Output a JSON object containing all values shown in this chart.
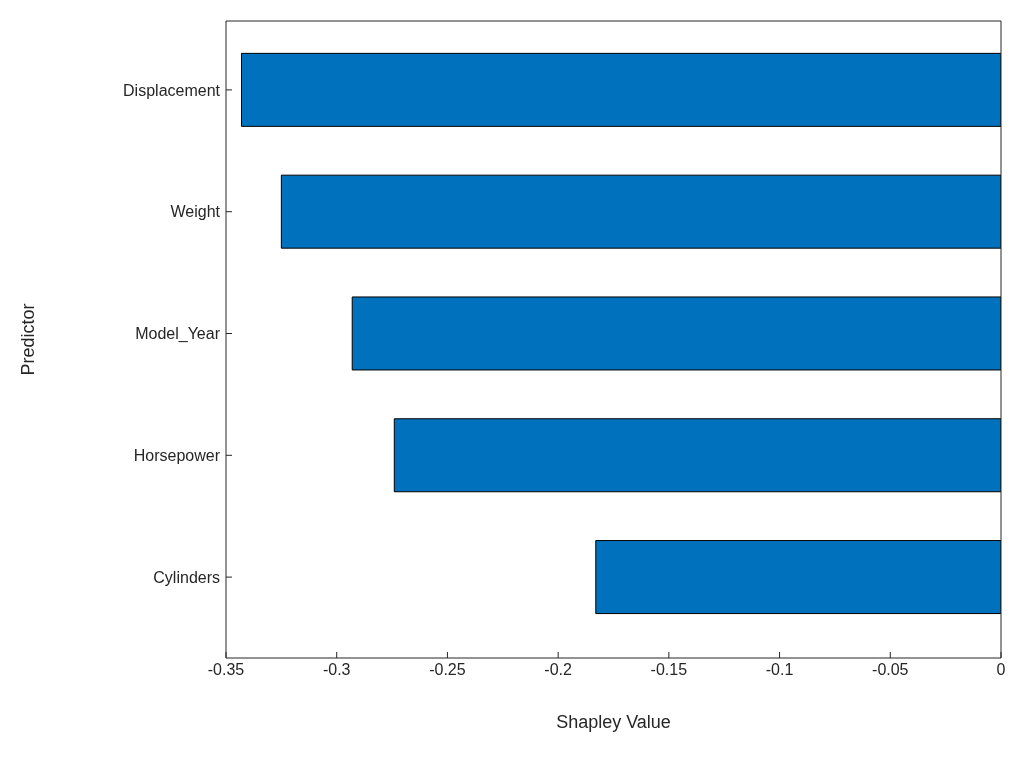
{
  "chart_data": {
    "type": "bar",
    "orientation": "horizontal",
    "xlabel": "Shapley Value",
    "ylabel": "Predictor",
    "categories": [
      "Displacement",
      "Weight",
      "Model_Year",
      "Horsepower",
      "Cylinders"
    ],
    "values": [
      -0.343,
      -0.325,
      -0.293,
      -0.274,
      -0.183
    ],
    "color": "#0072bd",
    "xlim": [
      -0.35,
      0
    ],
    "xticks": [
      {
        "value": -0.35,
        "label": "-0.35"
      },
      {
        "value": -0.3,
        "label": "-0.3"
      },
      {
        "value": -0.25,
        "label": "-0.25"
      },
      {
        "value": -0.2,
        "label": "-0.2"
      },
      {
        "value": -0.15,
        "label": "-0.15"
      },
      {
        "value": -0.1,
        "label": "-0.1"
      },
      {
        "value": -0.05,
        "label": "-0.05"
      },
      {
        "value": 0,
        "label": "0"
      }
    ],
    "grid": false
  }
}
